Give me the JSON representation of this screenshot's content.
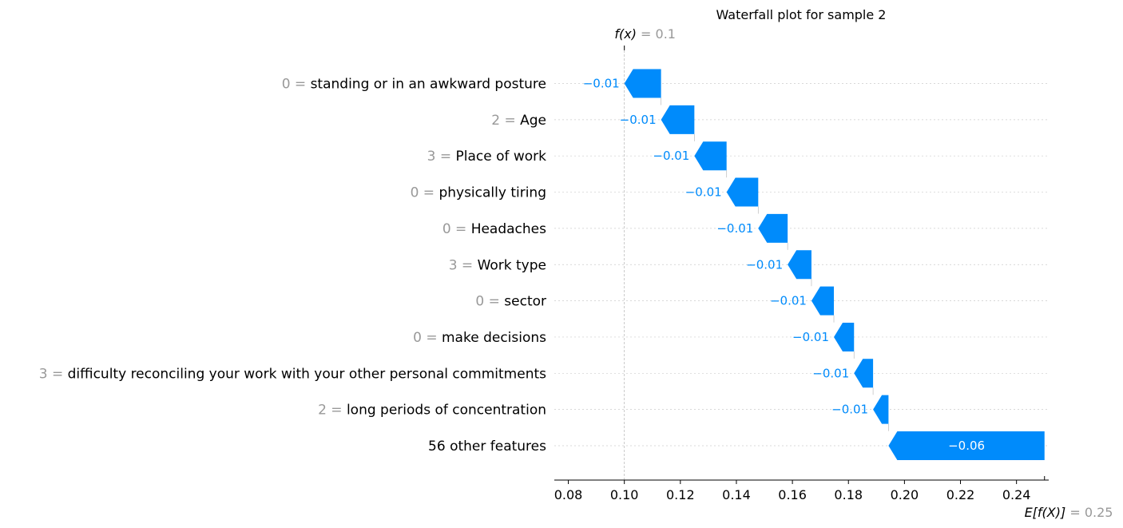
{
  "chart_data": {
    "type": "waterfall",
    "title": "Waterfall plot for sample 2",
    "fx_label": "f(x)",
    "fx_value": "0.1",
    "fx": 0.1,
    "base_label": "E[f(X)]",
    "base_value_text": "0.25",
    "base_value": 0.25,
    "xlim": [
      0.075,
      0.2515
    ],
    "xticks": [
      {
        "value": 0.08,
        "label": "0.08"
      },
      {
        "value": 0.1,
        "label": "0.10"
      },
      {
        "value": 0.12,
        "label": "0.12"
      },
      {
        "value": 0.14,
        "label": "0.14"
      },
      {
        "value": 0.16,
        "label": "0.16"
      },
      {
        "value": 0.18,
        "label": "0.18"
      },
      {
        "value": 0.2,
        "label": "0.20"
      },
      {
        "value": 0.22,
        "label": "0.22"
      },
      {
        "value": 0.24,
        "label": "0.24"
      }
    ],
    "features": [
      {
        "value": "0",
        "name": "standing or in an awkward posture",
        "start": 0.1131,
        "end": 0.1,
        "label": "−0.01"
      },
      {
        "value": "2",
        "name": "Age",
        "start": 0.125,
        "end": 0.1131,
        "label": "−0.01"
      },
      {
        "value": "3",
        "name": "Place of work",
        "start": 0.1365,
        "end": 0.125,
        "label": "−0.01"
      },
      {
        "value": "0",
        "name": "physically tiring",
        "start": 0.1478,
        "end": 0.1365,
        "label": "−0.01"
      },
      {
        "value": "0",
        "name": "Headaches",
        "start": 0.1583,
        "end": 0.1478,
        "label": "−0.01"
      },
      {
        "value": "3",
        "name": "Work type",
        "start": 0.1668,
        "end": 0.1583,
        "label": "−0.01"
      },
      {
        "value": "0",
        "name": "sector",
        "start": 0.1748,
        "end": 0.1668,
        "label": "−0.01"
      },
      {
        "value": "0",
        "name": "make decisions",
        "start": 0.182,
        "end": 0.1748,
        "label": "−0.01"
      },
      {
        "value": "3",
        "name": "difficulty reconciling your work with your other personal commitments",
        "start": 0.1888,
        "end": 0.182,
        "label": "−0.01"
      },
      {
        "value": "2",
        "name": "long periods of concentration",
        "start": 0.1943,
        "end": 0.1888,
        "label": "−0.01"
      },
      {
        "value": "",
        "name": "56 other features",
        "start": 0.25,
        "end": 0.1943,
        "label": "−0.06"
      }
    ],
    "colors": {
      "negative": "#008bfb",
      "label_gray": "#999999",
      "grid": "#cccccc"
    }
  }
}
